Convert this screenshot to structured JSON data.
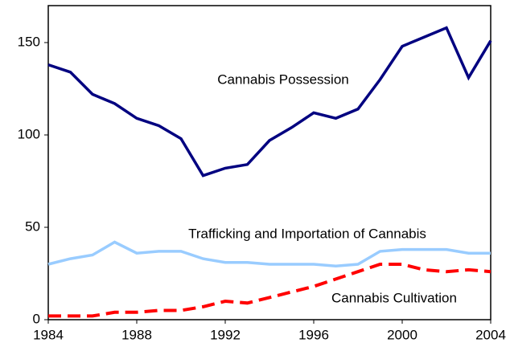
{
  "chart_data": {
    "type": "line",
    "x": [
      1984,
      1985,
      1986,
      1987,
      1988,
      1989,
      1990,
      1991,
      1992,
      1993,
      1994,
      1995,
      1996,
      1997,
      1998,
      1999,
      2000,
      2001,
      2002,
      2003,
      2004
    ],
    "series": [
      {
        "name": "Cannabis Possession",
        "color": "#000080",
        "dashed": false,
        "values": [
          138,
          134,
          122,
          117,
          109,
          105,
          98,
          78,
          82,
          84,
          97,
          104,
          112,
          109,
          114,
          130,
          148,
          153,
          158,
          131,
          151
        ]
      },
      {
        "name": "Trafficking and Importation of Cannabis",
        "color": "#99ccff",
        "dashed": false,
        "values": [
          30,
          33,
          35,
          42,
          36,
          37,
          37,
          33,
          31,
          31,
          30,
          30,
          30,
          29,
          30,
          37,
          38,
          38,
          38,
          36,
          36
        ]
      },
      {
        "name": "Cannabis Cultivation",
        "color": "#ff0000",
        "dashed": true,
        "values": [
          2,
          2,
          2,
          4,
          4,
          5,
          5,
          7,
          10,
          9,
          12,
          15,
          18,
          22,
          26,
          30,
          30,
          27,
          26,
          27,
          26
        ]
      }
    ],
    "xlim": [
      1984,
      2004
    ],
    "xticks": [
      1984,
      1988,
      1992,
      1996,
      2000,
      2004
    ],
    "ylim": [
      0,
      170
    ],
    "yticks": [
      0,
      50,
      100,
      150
    ]
  }
}
